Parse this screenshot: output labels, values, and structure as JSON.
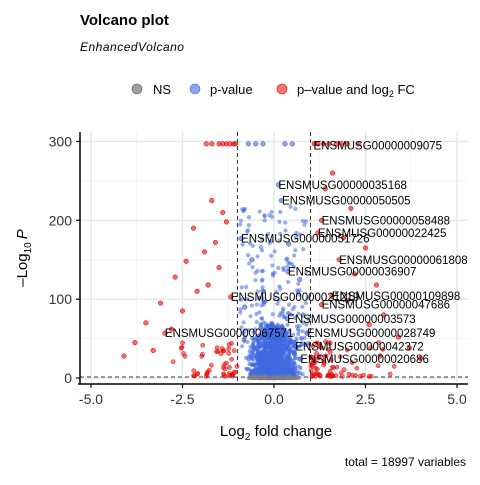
{
  "chart_data": {
    "type": "scatter",
    "title": "Volcano plot",
    "subtitle": "EnhancedVolcano",
    "xlabel_main": "Log",
    "xlabel_sub": "2",
    "xlabel_tail": " fold change",
    "ylabel_main": "Log",
    "ylabel_sub": "10",
    "ylabel_prefix": "–",
    "ylabel_tail": "P",
    "caption": "total = 18997 variables",
    "xlim": [
      -5.3,
      5.3
    ],
    "ylim": [
      -5,
      312
    ],
    "x_ticks": [
      "-5.0",
      "-2.5",
      "0.0",
      "2.5",
      "5.0"
    ],
    "x_tick_values": [
      -5,
      -2.5,
      0,
      2.5,
      5
    ],
    "y_ticks": [
      "0",
      "100",
      "200",
      "300"
    ],
    "y_tick_values": [
      0,
      100,
      200,
      300
    ],
    "grid": true,
    "fc_cutoff": 1,
    "p_cutoff": 1.3,
    "legend": {
      "position": "top",
      "items": [
        {
          "label": "NS",
          "color": "#808080"
        },
        {
          "label": "p-value",
          "color": "#4169E1"
        },
        {
          "label_main": "p–value and log",
          "label_sub": "2",
          "label_tail": " FC",
          "color": "#FF0000"
        }
      ]
    },
    "labels": [
      {
        "text": "ENSMUSG00000009075",
        "x": 1.08,
        "y": 295
      },
      {
        "text": "ENSMUSG00000035168",
        "x": 0.12,
        "y": 245
      },
      {
        "text": "ENSMUSG00000050505",
        "x": 0.22,
        "y": 225
      },
      {
        "text": "ENSMUSG00000058488",
        "x": 1.3,
        "y": 200
      },
      {
        "text": "ENSMUSG00000022425",
        "x": 1.2,
        "y": 184
      },
      {
        "text": "ENSMUSG00000051726",
        "x": -0.9,
        "y": 177
      },
      {
        "text": "ENSMUSG00000061808",
        "x": 1.78,
        "y": 150
      },
      {
        "text": "ENSMUSG00000036907",
        "x": 0.38,
        "y": 135
      },
      {
        "text": "ENSMUSG00000109898",
        "x": 1.58,
        "y": 104
      },
      {
        "text": "ENSMUSG00000021219",
        "x": -1.18,
        "y": 103
      },
      {
        "text": "ENSMUSG00000047686",
        "x": 1.3,
        "y": 93
      },
      {
        "text": "ENSMUSG00000003573",
        "x": 0.36,
        "y": 75
      },
      {
        "text": "ENSMUSG00000067571",
        "x": -2.98,
        "y": 57
      },
      {
        "text": "ENSMUSG00000028749",
        "x": 0.9,
        "y": 57
      },
      {
        "text": "ENSMUSG00000042372",
        "x": 0.58,
        "y": 40
      },
      {
        "text": "ENSMUSG00000020686",
        "x": 0.72,
        "y": 24
      }
    ],
    "highlight_points": [
      {
        "x": -1.5,
        "y": 297,
        "cls": "red"
      },
      {
        "x": -1.4,
        "y": 297,
        "cls": "red"
      },
      {
        "x": -1.3,
        "y": 297,
        "cls": "red"
      },
      {
        "x": -1.2,
        "y": 297,
        "cls": "red"
      },
      {
        "x": -1.1,
        "y": 297,
        "cls": "red"
      },
      {
        "x": -1.05,
        "y": 297,
        "cls": "red"
      },
      {
        "x": -1.85,
        "y": 297,
        "cls": "red"
      },
      {
        "x": -1.7,
        "y": 297,
        "cls": "red"
      },
      {
        "x": 1.1,
        "y": 297,
        "cls": "red"
      },
      {
        "x": 1.2,
        "y": 297,
        "cls": "red"
      },
      {
        "x": 1.35,
        "y": 297,
        "cls": "red"
      },
      {
        "x": 1.5,
        "y": 297,
        "cls": "red"
      },
      {
        "x": 1.7,
        "y": 297,
        "cls": "red"
      },
      {
        "x": 2.0,
        "y": 297,
        "cls": "red"
      },
      {
        "x": 2.3,
        "y": 297,
        "cls": "red"
      },
      {
        "x": 1.85,
        "y": 297,
        "cls": "red"
      },
      {
        "x": -0.7,
        "y": 297,
        "cls": "blue"
      },
      {
        "x": -0.5,
        "y": 297,
        "cls": "blue"
      },
      {
        "x": -0.3,
        "y": 297,
        "cls": "blue"
      },
      {
        "x": 0.3,
        "y": 297,
        "cls": "blue"
      },
      {
        "x": 0.5,
        "y": 297,
        "cls": "blue"
      },
      {
        "x": 0.12,
        "y": 245,
        "cls": "blue"
      },
      {
        "x": 0.2,
        "y": 225,
        "cls": "blue"
      },
      {
        "x": 1.3,
        "y": 200,
        "cls": "red"
      },
      {
        "x": 1.2,
        "y": 184,
        "cls": "red"
      },
      {
        "x": -0.9,
        "y": 177,
        "cls": "blue"
      },
      {
        "x": 1.78,
        "y": 150,
        "cls": "red"
      },
      {
        "x": 0.38,
        "y": 135,
        "cls": "blue"
      },
      {
        "x": 1.58,
        "y": 104,
        "cls": "red"
      },
      {
        "x": -1.18,
        "y": 103,
        "cls": "red"
      },
      {
        "x": 1.3,
        "y": 93,
        "cls": "red"
      },
      {
        "x": 0.36,
        "y": 75,
        "cls": "blue"
      },
      {
        "x": -2.98,
        "y": 57,
        "cls": "red"
      },
      {
        "x": 0.9,
        "y": 57,
        "cls": "blue"
      },
      {
        "x": 0.58,
        "y": 40,
        "cls": "blue"
      },
      {
        "x": 0.72,
        "y": 24,
        "cls": "blue"
      },
      {
        "x": -1.7,
        "y": 225,
        "cls": "red"
      },
      {
        "x": -1.4,
        "y": 210,
        "cls": "red"
      },
      {
        "x": -1.3,
        "y": 198,
        "cls": "red"
      },
      {
        "x": -2.2,
        "y": 190,
        "cls": "red"
      },
      {
        "x": -1.6,
        "y": 172,
        "cls": "red"
      },
      {
        "x": -1.9,
        "y": 160,
        "cls": "red"
      },
      {
        "x": -2.4,
        "y": 148,
        "cls": "red"
      },
      {
        "x": -1.5,
        "y": 140,
        "cls": "red"
      },
      {
        "x": -2.7,
        "y": 128,
        "cls": "red"
      },
      {
        "x": -1.8,
        "y": 118,
        "cls": "red"
      },
      {
        "x": -2.1,
        "y": 110,
        "cls": "red"
      },
      {
        "x": -3.1,
        "y": 95,
        "cls": "red"
      },
      {
        "x": -2.5,
        "y": 85,
        "cls": "red"
      },
      {
        "x": -3.5,
        "y": 70,
        "cls": "red"
      },
      {
        "x": -2.8,
        "y": 62,
        "cls": "red"
      },
      {
        "x": -3.8,
        "y": 45,
        "cls": "red"
      },
      {
        "x": -3.3,
        "y": 35,
        "cls": "red"
      },
      {
        "x": -4.1,
        "y": 28,
        "cls": "red"
      },
      {
        "x": 1.6,
        "y": 260,
        "cls": "red"
      },
      {
        "x": 1.4,
        "y": 240,
        "cls": "red"
      },
      {
        "x": 2.1,
        "y": 215,
        "cls": "red"
      },
      {
        "x": 1.9,
        "y": 178,
        "cls": "red"
      },
      {
        "x": 2.5,
        "y": 165,
        "cls": "red"
      },
      {
        "x": 2.2,
        "y": 132,
        "cls": "red"
      },
      {
        "x": 2.8,
        "y": 118,
        "cls": "red"
      },
      {
        "x": 2.0,
        "y": 98,
        "cls": "red"
      },
      {
        "x": 3.0,
        "y": 80,
        "cls": "red"
      },
      {
        "x": 2.6,
        "y": 68,
        "cls": "red"
      },
      {
        "x": 3.4,
        "y": 52,
        "cls": "red"
      },
      {
        "x": 3.7,
        "y": 38,
        "cls": "red"
      },
      {
        "x": 4.0,
        "y": 25,
        "cls": "red"
      },
      {
        "x": 2.9,
        "y": 28,
        "cls": "red"
      },
      {
        "x": -0.3,
        "y": 110,
        "cls": "blue"
      },
      {
        "x": -0.6,
        "y": 150,
        "cls": "blue"
      },
      {
        "x": 0.4,
        "y": 170,
        "cls": "blue"
      },
      {
        "x": 0.7,
        "y": 125,
        "cls": "blue"
      },
      {
        "x": -0.8,
        "y": 90,
        "cls": "blue"
      },
      {
        "x": 0.8,
        "y": 80,
        "cls": "blue"
      }
    ]
  }
}
